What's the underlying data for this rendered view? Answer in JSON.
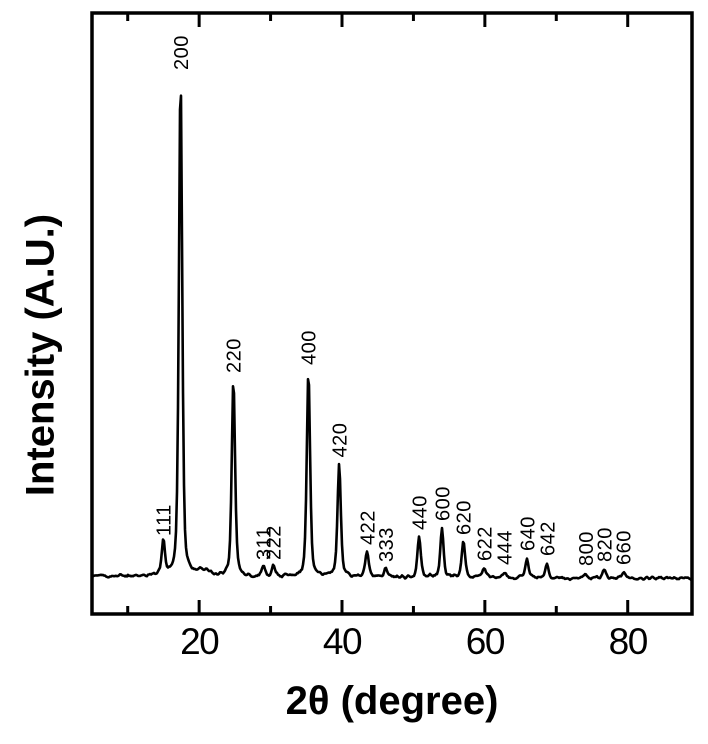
{
  "figure": {
    "background": "#ffffff",
    "frame_color": "#000000"
  },
  "chart_data": {
    "type": "line",
    "title": "",
    "xlabel": "2θ (degree)",
    "ylabel": "Intensity (A.U.)",
    "xlim": [
      5,
      89
    ],
    "x_ticks_major": [
      20,
      40,
      60,
      80
    ],
    "x_ticks_minor": [
      10,
      30,
      50,
      70
    ],
    "y_axis_ticks": "none (arbitrary units)",
    "grid": false,
    "line_color": "#000000",
    "peaks": [
      {
        "hkl": "111",
        "two_theta": 15.0,
        "rel_intensity": 6.8
      },
      {
        "hkl": "200",
        "two_theta": 17.4,
        "rel_intensity": 100
      },
      {
        "hkl": "220",
        "two_theta": 24.8,
        "rel_intensity": 39.4
      },
      {
        "hkl": "311",
        "two_theta": 29.0,
        "rel_intensity": 2.0
      },
      {
        "hkl": "222",
        "two_theta": 30.4,
        "rel_intensity": 2.0
      },
      {
        "hkl": "400",
        "two_theta": 35.3,
        "rel_intensity": 41.0
      },
      {
        "hkl": "420",
        "two_theta": 39.6,
        "rel_intensity": 22.5
      },
      {
        "hkl": "422",
        "two_theta": 43.5,
        "rel_intensity": 5.0
      },
      {
        "hkl": "333",
        "two_theta": 46.1,
        "rel_intensity": 1.6
      },
      {
        "hkl": "440",
        "two_theta": 50.8,
        "rel_intensity": 8.0
      },
      {
        "hkl": "600",
        "two_theta": 54.0,
        "rel_intensity": 9.8
      },
      {
        "hkl": "620",
        "two_theta": 57.0,
        "rel_intensity": 7.0
      },
      {
        "hkl": "622",
        "two_theta": 59.9,
        "rel_intensity": 1.8
      },
      {
        "hkl": "444",
        "two_theta": 62.7,
        "rel_intensity": 1.0
      },
      {
        "hkl": "640",
        "two_theta": 65.9,
        "rel_intensity": 3.8
      },
      {
        "hkl": "642",
        "two_theta": 68.7,
        "rel_intensity": 2.8
      },
      {
        "hkl": "800",
        "two_theta": 74.1,
        "rel_intensity": 0.8
      },
      {
        "hkl": "820",
        "two_theta": 76.7,
        "rel_intensity": 1.6
      },
      {
        "hkl": "660",
        "two_theta": 79.4,
        "rel_intensity": 1.0
      }
    ],
    "background_hump": {
      "two_theta": 20.5,
      "rel_intensity": 1.2,
      "width_deg": 0.9
    }
  }
}
